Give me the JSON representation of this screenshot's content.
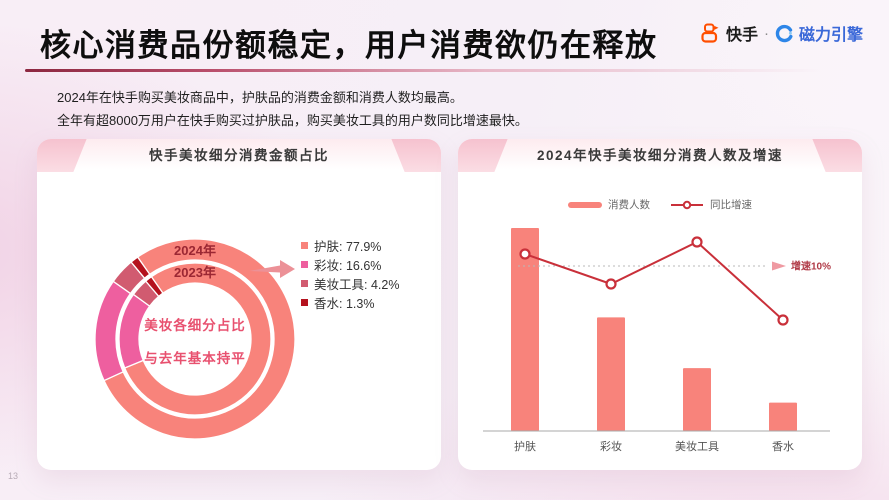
{
  "page": {
    "title": "核心消费品份额稳定，用户消费欲仍在释放",
    "subtitle_line1": "2024年在快手购买美妆商品中，护肤品的消费金额和消费人数均最高。",
    "subtitle_line2": "全年有超8000万用户在快手购买过护肤品，购买美妆工具的用户数同比增速最快。",
    "page_number": "13"
  },
  "brand": {
    "kuaishou_label": "快手",
    "separator": "·",
    "engine_label": "磁力引擎",
    "kuaishou_color": "#FF4E00",
    "engine_color": "#2E86E8"
  },
  "chart_data": [
    {
      "type": "pie",
      "subtype": "double-ring-donut",
      "title": "快手美妆细分消费金额占比",
      "categories": [
        "护肤",
        "彩妆",
        "美妆工具",
        "香水"
      ],
      "series": [
        {
          "name": "2024年",
          "values": [
            77.9,
            16.6,
            4.2,
            1.3
          ]
        },
        {
          "name": "2023年",
          "values": [
            78.5,
            16.2,
            3.8,
            1.5
          ],
          "note": "inner ring shown without labels; values estimated, text states shares roughly flat vs last year"
        }
      ],
      "segment_colors": [
        "#F8837B",
        "#EE5F9F",
        "#D15B70",
        "#B4121E"
      ],
      "legend": [
        "护肤:  77.9%",
        "彩妆:  16.6%",
        "美妆工具:  4.2%",
        "香水:  1.3%"
      ],
      "center_label_line1": "美妆各细分占比",
      "center_label_line2": "与去年基本持平",
      "start_angle_deg": -35,
      "legend_position": "right"
    },
    {
      "type": "bar",
      "subtype": "bar-with-line",
      "title": "2024年快手美妆细分消费人数及增速",
      "categories": [
        "护肤",
        "彩妆",
        "美妆工具",
        "香水"
      ],
      "series": [
        {
          "name": "消费人数",
          "type": "bar",
          "values": [
            100,
            56,
            31,
            14
          ],
          "unit": "relative index (y-axis unlabeled)",
          "color": "#F8837B"
        },
        {
          "name": "同比增速",
          "type": "line",
          "values": [
            12,
            7,
            14,
            1
          ],
          "unit": "% (estimated vs 10% reference line)",
          "color": "#C9303A"
        }
      ],
      "reference_line": {
        "value": 10,
        "label": "增速10%",
        "style": "dashed",
        "label_color": "#B03A46"
      },
      "legend_position": "top",
      "grid": false
    }
  ]
}
